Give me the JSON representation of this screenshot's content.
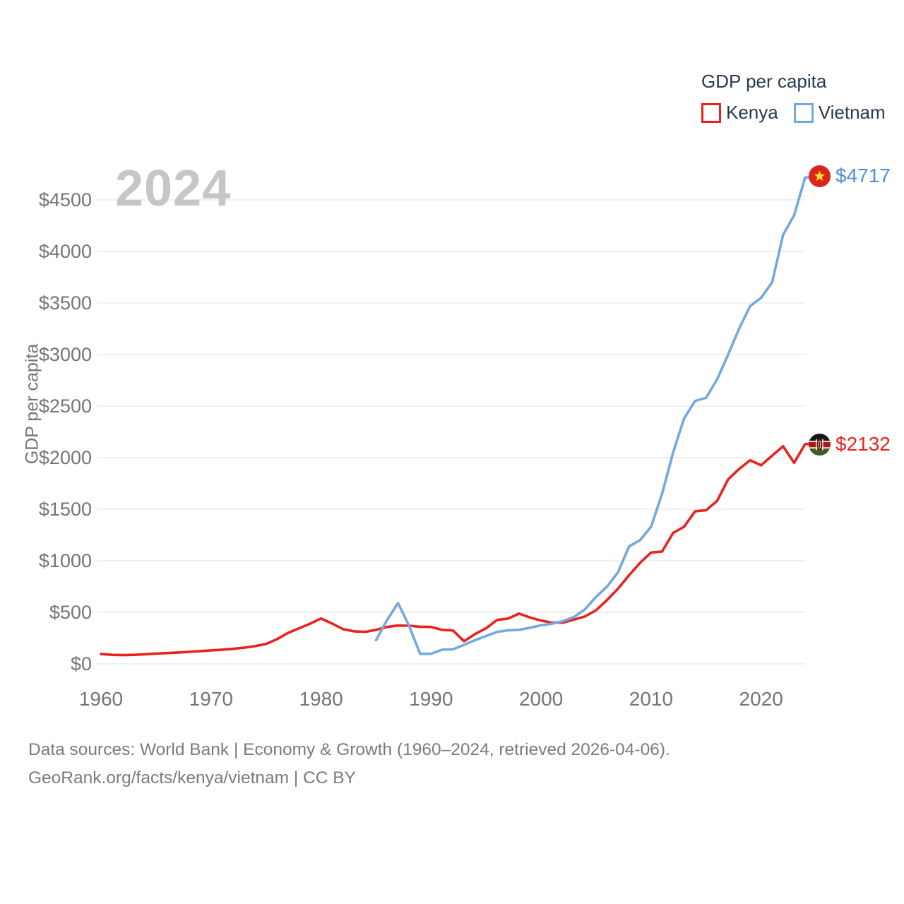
{
  "legend": {
    "title": "GDP per capita",
    "items": [
      {
        "label": "Kenya",
        "color": "#e8231f"
      },
      {
        "label": "Vietnam",
        "color": "#74a9de"
      }
    ]
  },
  "watermark": "2024",
  "chart_data": {
    "type": "line",
    "title": "GDP per capita",
    "ylabel": "GDP per capita",
    "xlabel": "",
    "xlim": [
      1960,
      2024
    ],
    "ylim": [
      0,
      4750
    ],
    "grid": "horizontal",
    "x_ticks": [
      1960,
      1970,
      1980,
      1990,
      2000,
      2010,
      2020
    ],
    "y_ticks": [
      {
        "value": 0,
        "label": "$0"
      },
      {
        "value": 500,
        "label": "$500"
      },
      {
        "value": 1000,
        "label": "$1000"
      },
      {
        "value": 1500,
        "label": "$1500"
      },
      {
        "value": 2000,
        "label": "$2000"
      },
      {
        "value": 2500,
        "label": "$2500"
      },
      {
        "value": 3000,
        "label": "$3000"
      },
      {
        "value": 3500,
        "label": "$3500"
      },
      {
        "value": 4000,
        "label": "$4000"
      },
      {
        "value": 4500,
        "label": "$4500"
      }
    ],
    "series": [
      {
        "name": "Kenya",
        "color": "#e8231f",
        "start_year": 1960,
        "values": [
          95,
          88,
          85,
          88,
          93,
          100,
          105,
          110,
          117,
          124,
          131,
          138,
          146,
          157,
          172,
          193,
          240,
          300,
          345,
          390,
          440,
          392,
          337,
          316,
          310,
          330,
          358,
          372,
          370,
          360,
          358,
          330,
          323,
          220,
          290,
          345,
          426,
          440,
          488,
          450,
          420,
          400,
          400,
          430,
          460,
          520,
          620,
          730,
          860,
          980,
          1080,
          1090,
          1270,
          1330,
          1480,
          1490,
          1580,
          1790,
          1890,
          1975,
          1926,
          2020,
          2110,
          1950,
          2132
        ]
      },
      {
        "name": "Vietnam",
        "color": "#74a9de",
        "start_year": 1985,
        "values": [
          230,
          425,
          590,
          370,
          97,
          98,
          138,
          142,
          185,
          230,
          270,
          310,
          325,
          330,
          350,
          375,
          390,
          415,
          455,
          530,
          650,
          750,
          890,
          1140,
          1200,
          1330,
          1650,
          2050,
          2380,
          2550,
          2580,
          2760,
          3000,
          3250,
          3470,
          3550,
          3700,
          4160,
          4350,
          4717
        ]
      }
    ],
    "end_annotations": [
      {
        "series": "Vietnam",
        "label": "$4717",
        "value": 4717,
        "flag": "vietnam-flag",
        "text_color": "#4a90d9"
      },
      {
        "series": "Kenya",
        "label": "$2132",
        "value": 2132,
        "flag": "kenya-flag",
        "text_color": "#e8231f"
      }
    ]
  },
  "footer": {
    "line1": "Data sources: World Bank | Economy & Growth (1960–2024, retrieved 2026-04-06).",
    "line2": "GeoRank.org/facts/kenya/vietnam | CC BY"
  }
}
